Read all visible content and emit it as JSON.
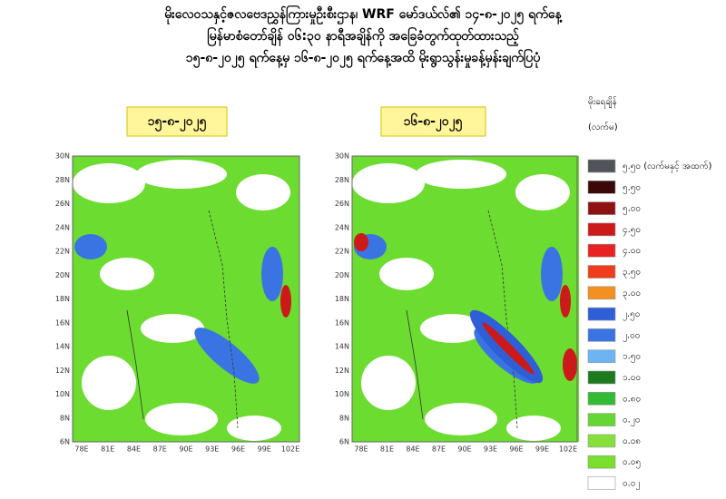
{
  "title_lines": [
    "မိုးလေဝသနှင့်ဇလဗေဒညွှန်ကြားမှုဦးစီးဌာန၊ WRF မော်ဒယ်လ်၏ ၁၄-၈-၂၀၂၅ ရက်နေ့",
    "မြန်မာစံတော်ချိန် ၀၆:၃၀ နာရီအချိန်ကို အခြေခံတွက်ထုတ်ထားသည့်",
    "၁၅-၈-၂၀၂၅ ရက်နေ့မှ ၁၆-၈-၂၀၂၅ ရက်နေ့အထိ မိုးရွာသွန်းမှုခန့်မှန်းချက်ပြပုံ"
  ],
  "panels": [
    {
      "date": "၁၅-၈-၂၀၂၅"
    },
    {
      "date": "၁၆-၈-၂၀၂၅"
    }
  ],
  "lat_ticks": [
    "30N",
    "28N",
    "26N",
    "24N",
    "22N",
    "20N",
    "18N",
    "16N",
    "14N",
    "12N",
    "10N",
    "8N",
    "6N"
  ],
  "lon_ticks": [
    "78E",
    "81E",
    "84E",
    "87E",
    "90E",
    "93E",
    "96E",
    "99E",
    "102E"
  ],
  "legend": {
    "title": "မိုးရေချိန်",
    "unit": "(လက်မ)",
    "items": [
      {
        "label": "၅.၅၀ (လက်မနှင့် အထက်)",
        "color": "#505458"
      },
      {
        "label": "၅.၅၀",
        "color": "#3a0808"
      },
      {
        "label": "၅.၀၀",
        "color": "#8e1212"
      },
      {
        "label": "၄.၅၀",
        "color": "#cc1a1a"
      },
      {
        "label": "၄.၀၀",
        "color": "#e82222"
      },
      {
        "label": "၃.၅၀",
        "color": "#ee3c1c"
      },
      {
        "label": "၃.၀၀",
        "color": "#f39020"
      },
      {
        "label": "၂.၅၀",
        "color": "#2f5fd6"
      },
      {
        "label": "၂.၀၀",
        "color": "#3a74e2"
      },
      {
        "label": "၁.၅၀",
        "color": "#6cb4f2"
      },
      {
        "label": "၁.၀၀",
        "color": "#1e7a1e"
      },
      {
        "label": "၀.၈၀",
        "color": "#33bb33"
      },
      {
        "label": "၀.၂၀",
        "color": "#66d634"
      },
      {
        "label": "၀.၀၈",
        "color": "#86e03c"
      },
      {
        "label": "၀.၀၅",
        "color": "#7ade2e"
      },
      {
        "label": "၀.၀၂",
        "color": "#ffffff"
      }
    ]
  }
}
